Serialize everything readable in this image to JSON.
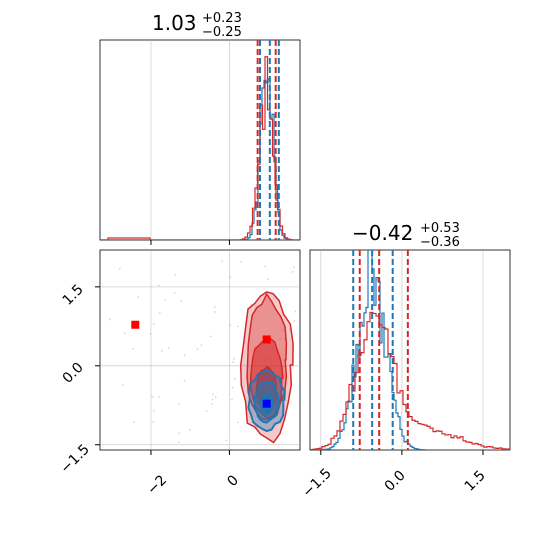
{
  "chart_data": {
    "type": "corner",
    "series": [
      {
        "color": "#1f77b4",
        "p1_median": 1.03,
        "p1_quantiles": [
          0.78,
          1.26
        ],
        "p2_median": -0.55,
        "p2_quantiles": [
          -0.9,
          -0.17
        ],
        "point": {
          "x": 0.95,
          "y": -0.72,
          "color": "#0000ff"
        }
      },
      {
        "color": "#d62728",
        "p1_median": 0.96,
        "p1_quantiles": [
          0.72,
          1.18
        ],
        "p2_median": -0.42,
        "p2_quantiles": [
          -0.78,
          0.11
        ],
        "point": {
          "x": 0.95,
          "y": 0.5,
          "color": "#ff0000"
        },
        "outlier_point": {
          "x": -2.4,
          "y": 0.78,
          "color": "#ff0000"
        }
      }
    ],
    "panels": [
      {
        "position": "top-left",
        "type": "histogram",
        "title": {
          "main": "1.03",
          "sup": "+0.23",
          "sub": "−0.25"
        },
        "xlim": [
          -3.3,
          1.8
        ]
      },
      {
        "position": "bottom-right",
        "type": "histogram",
        "title": {
          "main": "−0.42",
          "sup": "+0.53",
          "sub": "−0.36"
        },
        "xlim": [
          -1.7,
          2.0
        ],
        "xticks": [
          "−1.5",
          "0.0",
          "1.5"
        ]
      },
      {
        "position": "bottom-left",
        "type": "2d-contour",
        "xlim": [
          -3.3,
          1.8
        ],
        "ylim": [
          -1.6,
          2.2
        ],
        "xticks": [
          "−2",
          "0"
        ],
        "yticks": [
          "1.5",
          "0.0",
          "−1.5"
        ]
      }
    ],
    "grid": true
  }
}
